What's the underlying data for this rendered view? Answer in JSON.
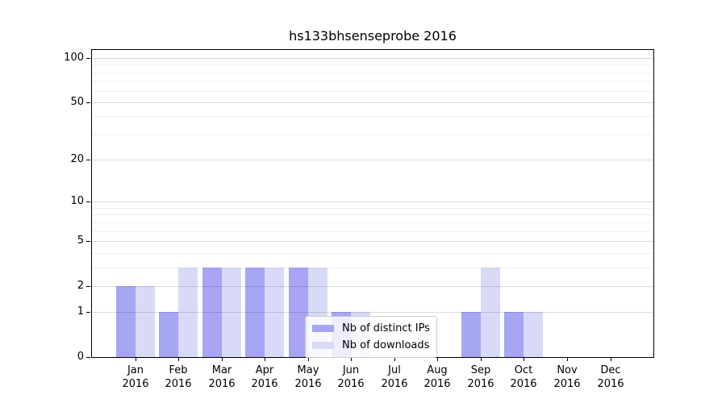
{
  "chart_data": {
    "type": "bar",
    "title": "hs133bhsenseprobe 2016",
    "yscale": "log1p",
    "ylim": [
      0,
      113
    ],
    "grid": true,
    "legend_position": "lower center",
    "year": "2016",
    "categories": [
      "Jan",
      "Feb",
      "Mar",
      "Apr",
      "May",
      "Jun",
      "Jul",
      "Aug",
      "Sep",
      "Oct",
      "Nov",
      "Dec"
    ],
    "y_major_ticks": [
      0,
      1,
      2,
      5,
      10,
      20,
      50,
      100
    ],
    "y_minor_gridlines": [
      3,
      4,
      6,
      7,
      8,
      9,
      30,
      40,
      60,
      70,
      80,
      90
    ],
    "series": [
      {
        "name": "Nb of distinct IPs",
        "color": "#a6a6f4",
        "values": [
          2,
          1,
          3,
          3,
          3,
          1,
          0,
          0,
          1,
          1,
          0,
          0
        ]
      },
      {
        "name": "Nb of downloads",
        "color": "#d9d9f8",
        "values": [
          2,
          3,
          3,
          3,
          3,
          1,
          0,
          0,
          3,
          1,
          0,
          0
        ]
      }
    ]
  }
}
